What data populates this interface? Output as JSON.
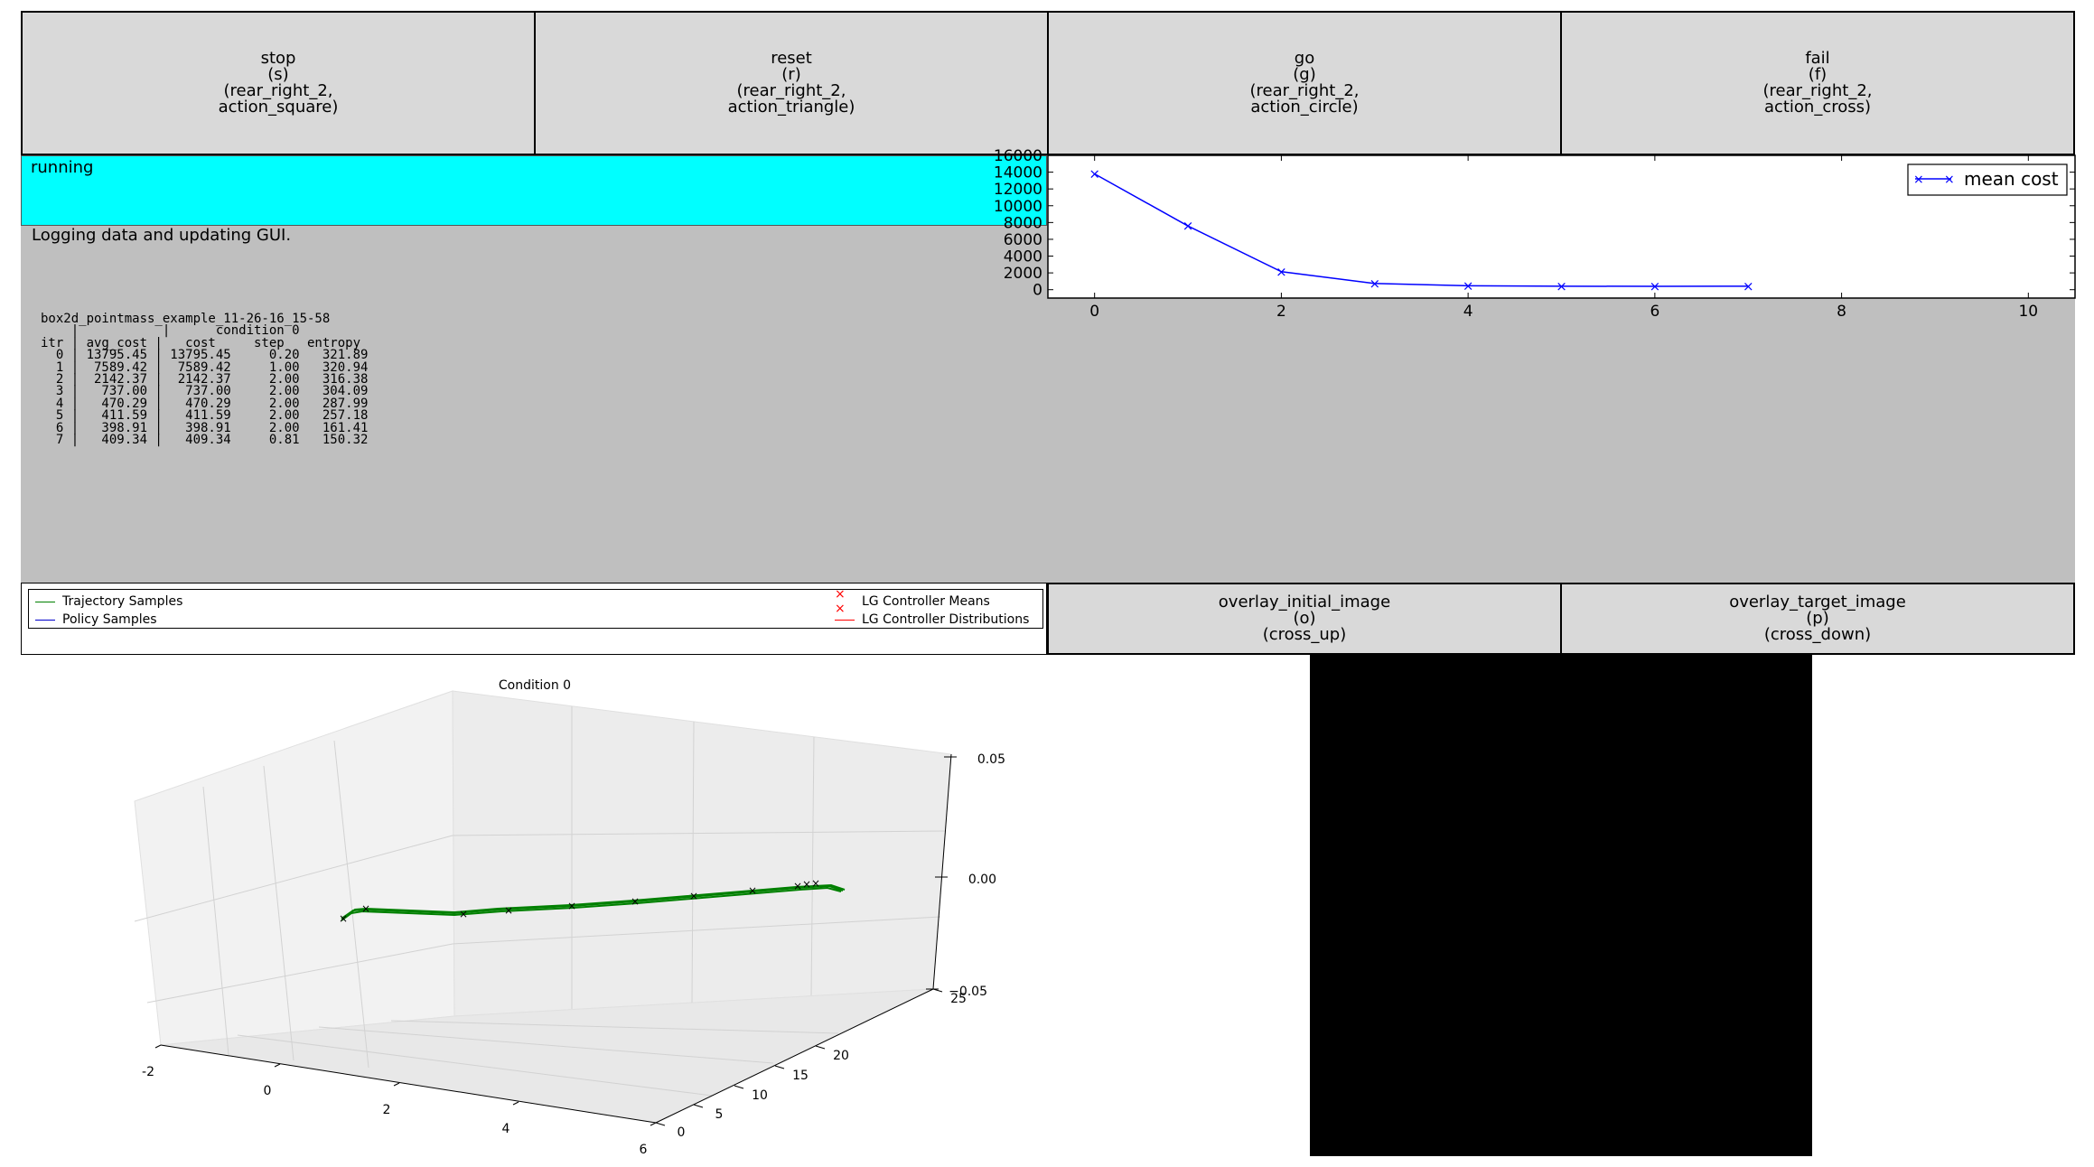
{
  "buttons": [
    {
      "label": "stop\n(s)\n(rear_right_2,\naction_square)"
    },
    {
      "label": "reset\n(r)\n(rear_right_2,\naction_triangle)"
    },
    {
      "label": "go\n(g)\n(rear_right_2,\naction_circle)"
    },
    {
      "label": "fail\n(f)\n(rear_right_2,\naction_cross)"
    }
  ],
  "image_buttons": [
    {
      "label": "overlay_initial_image\n(o)\n(cross_up)"
    },
    {
      "label": "overlay_target_image\n(p)\n(cross_down)"
    }
  ],
  "status": {
    "text": "running",
    "color": "#00ffff"
  },
  "action_output": {
    "text": "Logging data and updating GUI."
  },
  "iteration_log": {
    "text": "box2d_pointmass_example_11-26-16_15-58\n    |           |      condition 0\nitr | avg_cost |   cost     step   entropy\n  0 | 13795.45 | 13795.45     0.20   321.89\n  1 |  7589.42 |  7589.42     1.00   320.94\n  2 |  2142.37 |  2142.37     2.00   316.38\n  3 |   737.00 |   737.00     2.00   304.09\n  4 |   470.29 |   470.29     2.00   287.99\n  5 |   411.59 |   411.59     2.00   257.18\n  6 |   398.91 |   398.91     2.00   161.41\n  7 |   409.34 |   409.34     0.81   150.32"
  },
  "legend": {
    "trajectory": "Trajectory Samples",
    "policy": "Policy Samples",
    "means": "LG Controller Means",
    "distributions": "LG Controller Distributions",
    "colors": {
      "trajectory": "#008000",
      "policy": "#0000cc",
      "lg": "#ff0000"
    }
  },
  "chart_data": [
    {
      "type": "line",
      "series": [
        {
          "name": "mean cost",
          "x": [
            0,
            1,
            2,
            3,
            4,
            5,
            6,
            7
          ],
          "values": [
            13795.45,
            7589.42,
            2142.37,
            737.0,
            470.29,
            411.59,
            398.91,
            409.34
          ],
          "color": "#0000ff",
          "marker": "x"
        }
      ],
      "xlim": [
        -0.5,
        10.5
      ],
      "ylim": [
        -1000,
        16000
      ],
      "xticks": [
        0,
        2,
        4,
        6,
        8,
        10
      ],
      "yticks": [
        0,
        2000,
        4000,
        6000,
        8000,
        10000,
        12000,
        14000,
        16000
      ],
      "legend_position": "top-right"
    },
    {
      "type": "line",
      "title": "Condition 0",
      "projection": "3d",
      "x_ticks": [
        "-2",
        "0",
        "2",
        "4",
        "6"
      ],
      "y_ticks": [
        "0",
        "5",
        "10",
        "15",
        "20",
        "25"
      ],
      "z_ticks": [
        "0.05",
        "0.00",
        "-0.05"
      ],
      "series": [
        {
          "name": "Trajectory Samples",
          "color": "#008000"
        },
        {
          "name": "LG Controller Means",
          "color": "#000000",
          "marker": "x"
        }
      ]
    }
  ],
  "image_visualizer": {
    "background": "#000000"
  }
}
